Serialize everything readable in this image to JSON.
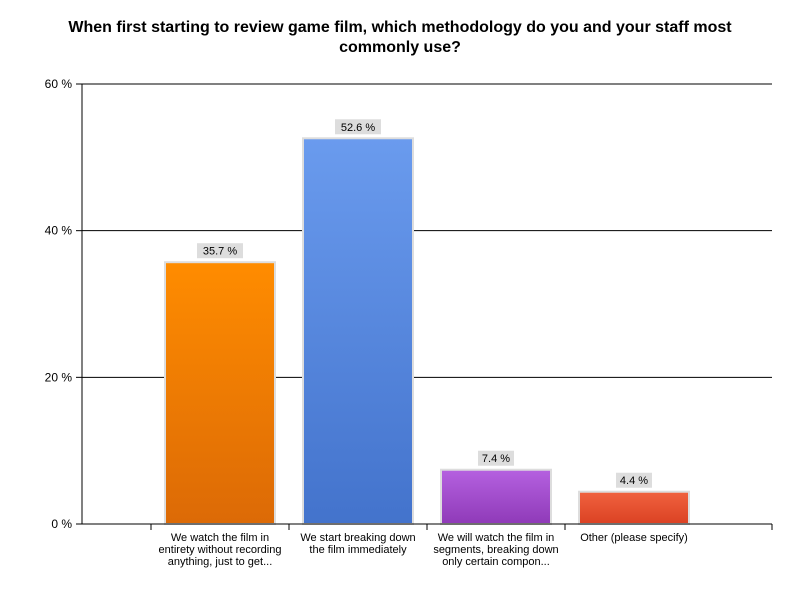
{
  "chart_data": {
    "type": "bar",
    "title": "When first starting to review game film, which methodology do you and your staff most commonly use?",
    "xlabel": "",
    "ylabel": "",
    "ylim": [
      0,
      60
    ],
    "yticks": [
      0,
      20,
      40,
      60
    ],
    "ytick_labels": [
      "0 %",
      "20 %",
      "40 %",
      "60 %"
    ],
    "grid": true,
    "categories": [
      "We watch the film in entirety without recording anything, just to get...",
      "We start breaking down the film immediately",
      "We will watch the film in segments, breaking down only certain compon...",
      "Other (please specify)"
    ],
    "values": [
      35.7,
      52.6,
      7.4,
      4.4
    ],
    "value_labels": [
      "35.7 %",
      "52.6 %",
      "7.4 %",
      "4.4 %"
    ],
    "colors": [
      [
        "#ff8c00",
        "#dc6a06"
      ],
      [
        "#6a9bee",
        "#4373cc"
      ],
      [
        "#b561e0",
        "#8f3ab8"
      ],
      [
        "#f0623f",
        "#db4223"
      ]
    ],
    "label_bg": "#dddddd"
  }
}
